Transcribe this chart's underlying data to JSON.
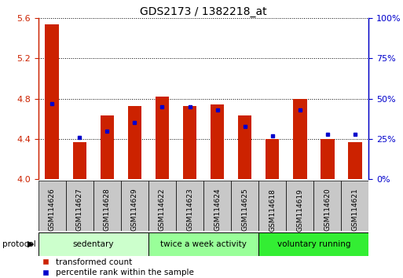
{
  "title": "GDS2173 / 1382218_at",
  "samples": [
    "GSM114626",
    "GSM114627",
    "GSM114628",
    "GSM114629",
    "GSM114622",
    "GSM114623",
    "GSM114624",
    "GSM114625",
    "GSM114618",
    "GSM114619",
    "GSM114620",
    "GSM114621"
  ],
  "transformed_count": [
    5.54,
    4.37,
    4.63,
    4.73,
    4.82,
    4.73,
    4.74,
    4.63,
    4.4,
    4.8,
    4.4,
    4.37
  ],
  "percentile_rank": [
    47,
    26,
    30,
    35,
    45,
    45,
    43,
    33,
    27,
    43,
    28,
    28
  ],
  "ylim_left": [
    4.0,
    5.6
  ],
  "ylim_right": [
    0,
    100
  ],
  "yticks_left": [
    4.0,
    4.4,
    4.8,
    5.2,
    5.6
  ],
  "yticks_right": [
    0,
    25,
    50,
    75,
    100
  ],
  "ytick_labels_right": [
    "0%",
    "25%",
    "50%",
    "75%",
    "100%"
  ],
  "groups": [
    {
      "label": "sedentary",
      "start": 0,
      "end": 4,
      "color": "#ccffcc"
    },
    {
      "label": "twice a week activity",
      "start": 4,
      "end": 8,
      "color": "#99ff99"
    },
    {
      "label": "voluntary running",
      "start": 8,
      "end": 12,
      "color": "#33ee33"
    }
  ],
  "bar_color": "#cc2200",
  "dot_color": "#0000cc",
  "bar_width": 0.5,
  "base_value": 4.0,
  "tick_color_left": "#cc2200",
  "tick_color_right": "#0000cc",
  "gray_box_color": "#c8c8c8",
  "group_border_color": "#000000",
  "legend_labels": [
    "transformed count",
    "percentile rank within the sample"
  ]
}
